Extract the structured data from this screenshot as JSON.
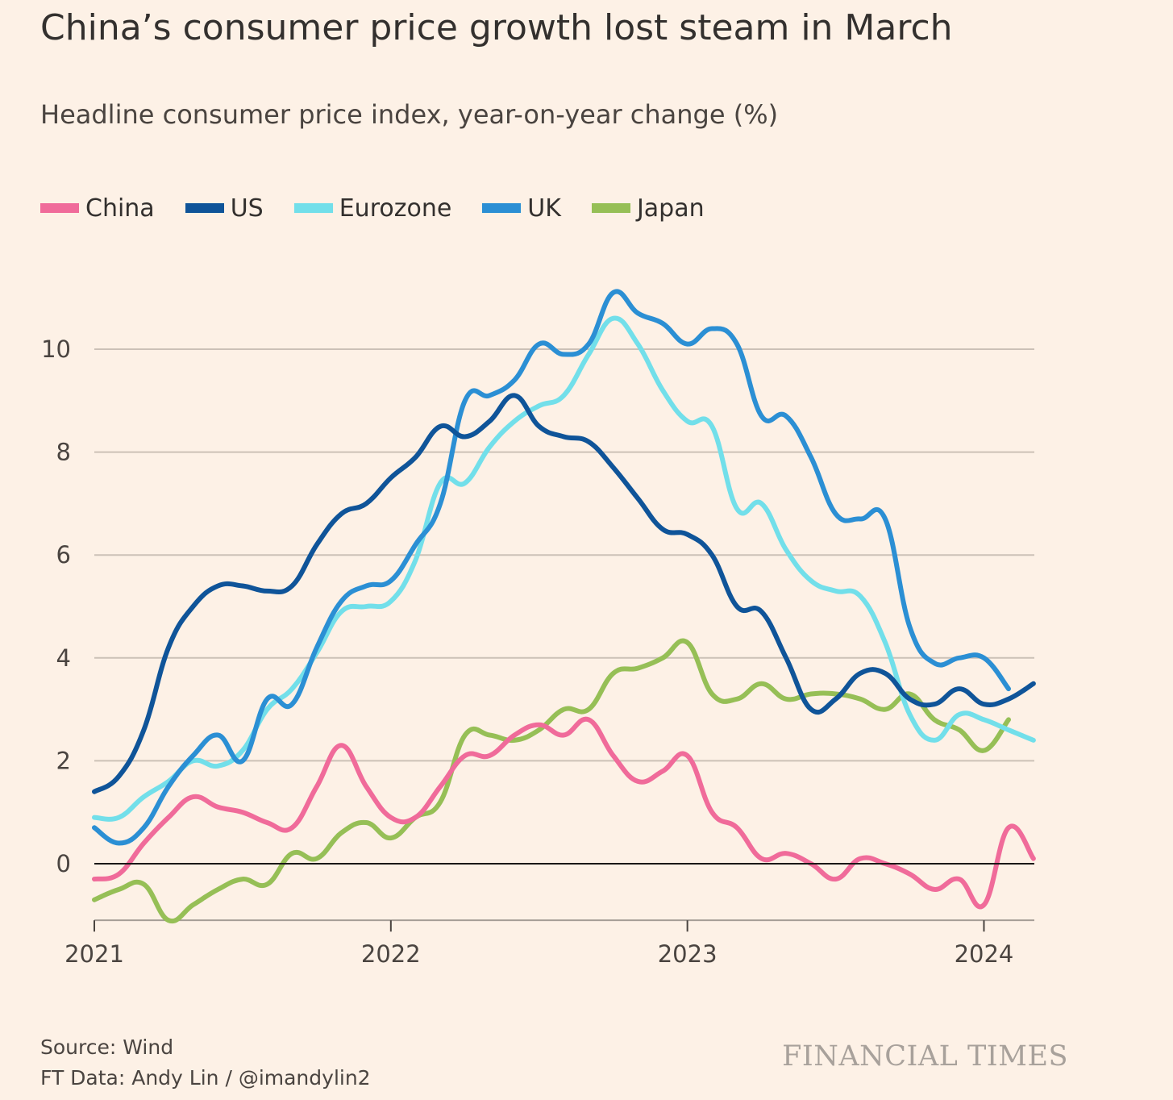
{
  "header": {
    "title": "China’s consumer price growth lost steam in March",
    "subtitle": "Headline consumer price index, year-on-year change (%)"
  },
  "footer": {
    "source": "Source: Wind",
    "credit": "FT Data: Andy Lin / @imandylin2",
    "brand": "FINANCIAL TIMES"
  },
  "chart_data": {
    "type": "line",
    "title": "China’s consumer price growth lost steam in March",
    "ylabel": "Headline consumer price index, year-on-year change (%)",
    "xlabel": "",
    "xlim": [
      2021.0,
      2024.17
    ],
    "ylim": [
      -1.1,
      11.5
    ],
    "yticks": [
      0,
      2,
      4,
      6,
      8,
      10
    ],
    "ytick_labels": [
      "0",
      "2",
      "4",
      "6",
      "8",
      "10"
    ],
    "xticks": [
      2021,
      2022,
      2023,
      2024
    ],
    "xtick_labels": [
      "2021",
      "2022",
      "2023",
      "2024"
    ],
    "grid": true,
    "legend_position": "top-left",
    "series": [
      {
        "name": "China",
        "color": "#f06b9a",
        "x": [
          2021.0,
          2021.083,
          2021.167,
          2021.25,
          2021.333,
          2021.417,
          2021.5,
          2021.583,
          2021.667,
          2021.75,
          2021.833,
          2021.917,
          2022.0,
          2022.083,
          2022.167,
          2022.25,
          2022.333,
          2022.417,
          2022.5,
          2022.583,
          2022.667,
          2022.75,
          2022.833,
          2022.917,
          2023.0,
          2023.083,
          2023.167,
          2023.25,
          2023.333,
          2023.417,
          2023.5,
          2023.583,
          2023.667,
          2023.75,
          2023.833,
          2023.917,
          2024.0,
          2024.083,
          2024.167
        ],
        "values": [
          -0.3,
          -0.2,
          0.4,
          0.9,
          1.3,
          1.1,
          1.0,
          0.8,
          0.7,
          1.5,
          2.3,
          1.5,
          0.9,
          0.9,
          1.5,
          2.1,
          2.1,
          2.5,
          2.7,
          2.5,
          2.8,
          2.1,
          1.6,
          1.8,
          2.1,
          1.0,
          0.7,
          0.1,
          0.2,
          0.0,
          -0.3,
          0.1,
          0.0,
          -0.2,
          -0.5,
          -0.3,
          -0.8,
          0.7,
          0.1
        ]
      },
      {
        "name": "US",
        "color": "#0f5499",
        "x": [
          2021.0,
          2021.083,
          2021.167,
          2021.25,
          2021.333,
          2021.417,
          2021.5,
          2021.583,
          2021.667,
          2021.75,
          2021.833,
          2021.917,
          2022.0,
          2022.083,
          2022.167,
          2022.25,
          2022.333,
          2022.417,
          2022.5,
          2022.583,
          2022.667,
          2022.75,
          2022.833,
          2022.917,
          2023.0,
          2023.083,
          2023.167,
          2023.25,
          2023.333,
          2023.417,
          2023.5,
          2023.583,
          2023.667,
          2023.75,
          2023.833,
          2023.917,
          2024.0,
          2024.083,
          2024.167
        ],
        "values": [
          1.4,
          1.7,
          2.6,
          4.2,
          5.0,
          5.4,
          5.4,
          5.3,
          5.4,
          6.2,
          6.8,
          7.0,
          7.5,
          7.9,
          8.5,
          8.3,
          8.6,
          9.1,
          8.5,
          8.3,
          8.2,
          7.7,
          7.1,
          6.5,
          6.4,
          6.0,
          5.0,
          4.9,
          4.0,
          3.0,
          3.2,
          3.7,
          3.7,
          3.2,
          3.1,
          3.4,
          3.1,
          3.2,
          3.5
        ]
      },
      {
        "name": "Eurozone",
        "color": "#72dfea",
        "x": [
          2021.0,
          2021.083,
          2021.167,
          2021.25,
          2021.333,
          2021.417,
          2021.5,
          2021.583,
          2021.667,
          2021.75,
          2021.833,
          2021.917,
          2022.0,
          2022.083,
          2022.167,
          2022.25,
          2022.333,
          2022.417,
          2022.5,
          2022.583,
          2022.667,
          2022.75,
          2022.833,
          2022.917,
          2023.0,
          2023.083,
          2023.167,
          2023.25,
          2023.333,
          2023.417,
          2023.5,
          2023.583,
          2023.667,
          2023.75,
          2023.833,
          2023.917,
          2024.0,
          2024.083,
          2024.167
        ],
        "values": [
          0.9,
          0.9,
          1.3,
          1.6,
          2.0,
          1.9,
          2.2,
          3.0,
          3.4,
          4.1,
          4.9,
          5.0,
          5.1,
          5.9,
          7.4,
          7.4,
          8.1,
          8.6,
          8.9,
          9.1,
          9.9,
          10.6,
          10.1,
          9.2,
          8.6,
          8.5,
          6.9,
          7.0,
          6.1,
          5.5,
          5.3,
          5.2,
          4.3,
          2.9,
          2.4,
          2.9,
          2.8,
          2.6,
          2.4
        ]
      },
      {
        "name": "UK",
        "color": "#2b8fd4",
        "x": [
          2021.0,
          2021.083,
          2021.167,
          2021.25,
          2021.333,
          2021.417,
          2021.5,
          2021.583,
          2021.667,
          2021.75,
          2021.833,
          2021.917,
          2022.0,
          2022.083,
          2022.167,
          2022.25,
          2022.333,
          2022.417,
          2022.5,
          2022.583,
          2022.667,
          2022.75,
          2022.833,
          2022.917,
          2023.0,
          2023.083,
          2023.167,
          2023.25,
          2023.333,
          2023.417,
          2023.5,
          2023.583,
          2023.667,
          2023.75,
          2023.833,
          2023.917,
          2024.0,
          2024.083
        ],
        "values": [
          0.7,
          0.4,
          0.7,
          1.5,
          2.1,
          2.5,
          2.0,
          3.2,
          3.1,
          4.2,
          5.1,
          5.4,
          5.5,
          6.2,
          7.0,
          9.0,
          9.1,
          9.4,
          10.1,
          9.9,
          10.1,
          11.1,
          10.7,
          10.5,
          10.1,
          10.4,
          10.1,
          8.7,
          8.7,
          7.9,
          6.8,
          6.7,
          6.7,
          4.6,
          3.9,
          4.0,
          4.0,
          3.4
        ]
      },
      {
        "name": "Japan",
        "color": "#96bf56",
        "x": [
          2021.0,
          2021.083,
          2021.167,
          2021.25,
          2021.333,
          2021.417,
          2021.5,
          2021.583,
          2021.667,
          2021.75,
          2021.833,
          2021.917,
          2022.0,
          2022.083,
          2022.167,
          2022.25,
          2022.333,
          2022.417,
          2022.5,
          2022.583,
          2022.667,
          2022.75,
          2022.833,
          2022.917,
          2023.0,
          2023.083,
          2023.167,
          2023.25,
          2023.333,
          2023.417,
          2023.5,
          2023.583,
          2023.667,
          2023.75,
          2023.833,
          2023.917,
          2024.0,
          2024.083
        ],
        "values": [
          -0.7,
          -0.5,
          -0.4,
          -1.1,
          -0.8,
          -0.5,
          -0.3,
          -0.4,
          0.2,
          0.1,
          0.6,
          0.8,
          0.5,
          0.9,
          1.2,
          2.5,
          2.5,
          2.4,
          2.6,
          3.0,
          3.0,
          3.7,
          3.8,
          4.0,
          4.3,
          3.3,
          3.2,
          3.5,
          3.2,
          3.3,
          3.3,
          3.2,
          3.0,
          3.3,
          2.8,
          2.6,
          2.2,
          2.8
        ]
      }
    ]
  }
}
